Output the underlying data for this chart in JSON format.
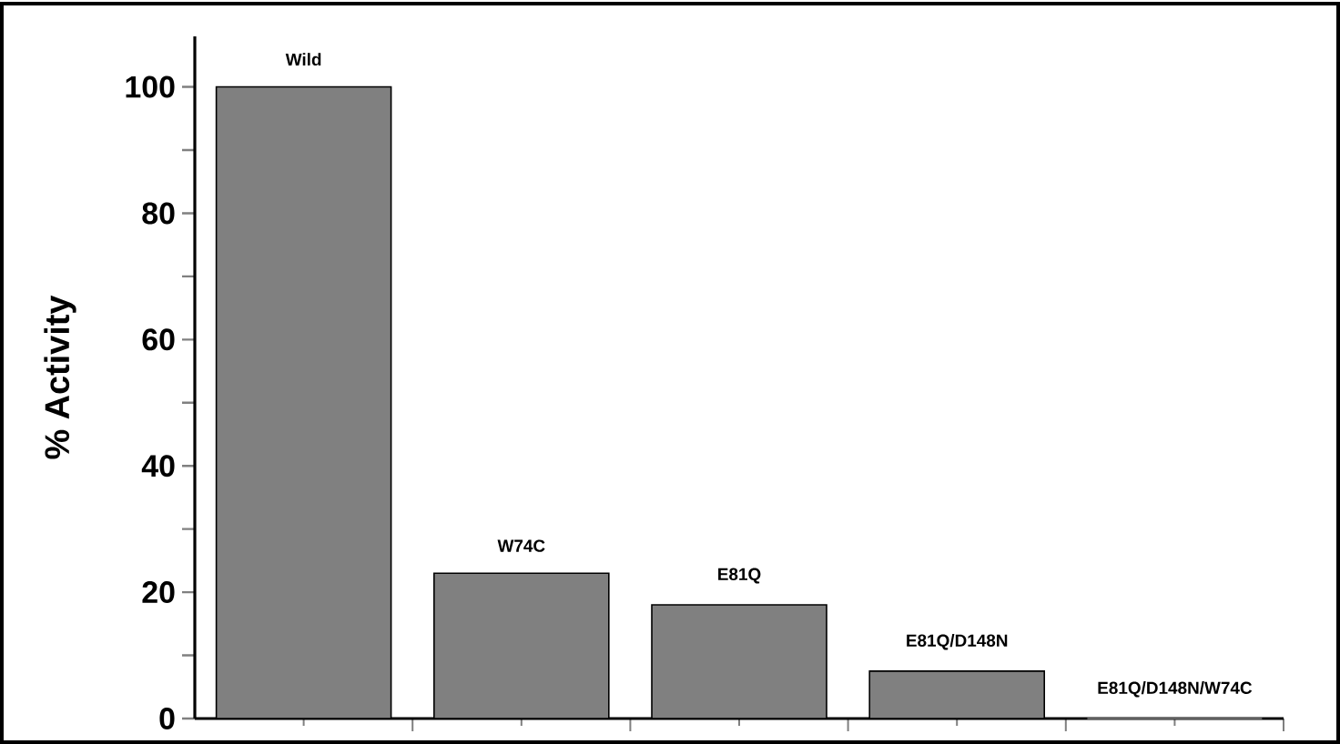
{
  "chart_data": {
    "type": "bar",
    "ylabel": "% Activity",
    "categories": [
      "Wild",
      "W74C",
      "E81Q",
      "E81Q/D148N",
      "E81Q/D148N/W74C"
    ],
    "values": [
      100,
      23,
      18,
      7.5,
      0
    ],
    "color": "#808080",
    "ylim": [
      0,
      108
    ],
    "yticks": [
      0,
      {
        "value": 10,
        "label": null
      },
      20,
      {
        "value": 30,
        "label": null
      },
      40,
      {
        "value": 50,
        "label": null
      },
      60,
      {
        "value": 70,
        "label": null
      },
      80,
      {
        "value": 90,
        "label": null
      },
      100
    ],
    "tick_labels": "y",
    "grid": false
  }
}
